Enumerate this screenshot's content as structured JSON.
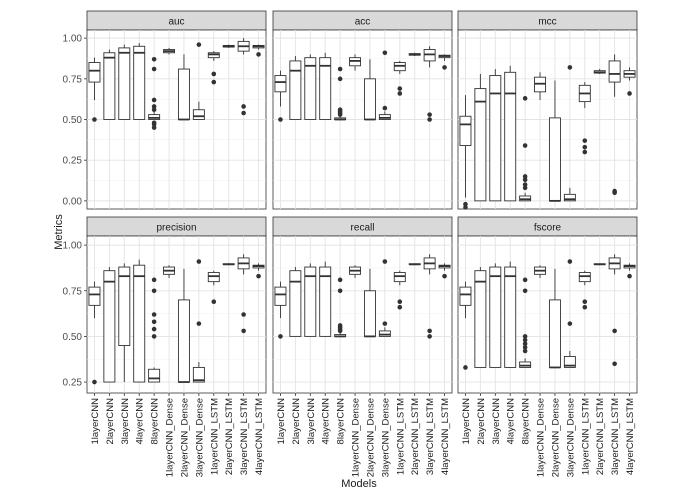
{
  "chart_data": {
    "type": "boxplot",
    "xlabel": "Models",
    "ylabel": "Metrics",
    "models": [
      "1layerCNN",
      "2layerCNN",
      "3layerCNN",
      "4layerCNN",
      "8layerCNN",
      "1layerCNN_Dense",
      "2layerCNN_Dense",
      "3layerCNN_Dense",
      "1layerCNN_LSTM",
      "2layerCNN_LSTM",
      "3layerCNN_LSTM",
      "4layerCNN_LSTM"
    ],
    "panels": [
      {
        "title": "auc",
        "ylim": [
          -0.05,
          1.05
        ],
        "yticks": [
          0.0,
          0.25,
          0.5,
          0.75,
          1.0
        ],
        "ytick_labels": [
          "0.00",
          "0.25",
          "0.50",
          "0.75",
          "1.00"
        ],
        "boxes": [
          {
            "min": 0.62,
            "q1": 0.73,
            "median": 0.8,
            "q3": 0.85,
            "max": 0.88,
            "outliers": [
              0.5
            ]
          },
          {
            "min": 0.5,
            "q1": 0.5,
            "median": 0.88,
            "q3": 0.91,
            "max": 0.93,
            "outliers": []
          },
          {
            "min": 0.5,
            "q1": 0.5,
            "median": 0.91,
            "q3": 0.94,
            "max": 0.96,
            "outliers": []
          },
          {
            "min": 0.5,
            "q1": 0.5,
            "median": 0.91,
            "q3": 0.95,
            "max": 0.97,
            "outliers": []
          },
          {
            "min": 0.5,
            "q1": 0.5,
            "median": 0.51,
            "q3": 0.53,
            "max": 0.55,
            "outliers": [
              0.48,
              0.47,
              0.45,
              0.58,
              0.56,
              0.62,
              0.81,
              0.87
            ]
          },
          {
            "min": 0.9,
            "q1": 0.91,
            "median": 0.92,
            "q3": 0.93,
            "max": 0.94,
            "outliers": []
          },
          {
            "min": 0.5,
            "q1": 0.5,
            "median": 0.5,
            "q3": 0.81,
            "max": 0.9,
            "outliers": []
          },
          {
            "min": 0.5,
            "q1": 0.5,
            "median": 0.52,
            "q3": 0.56,
            "max": 0.61,
            "outliers": [
              0.96
            ]
          },
          {
            "min": 0.86,
            "q1": 0.88,
            "median": 0.9,
            "q3": 0.91,
            "max": 0.92,
            "outliers": [
              0.78,
              0.73
            ]
          },
          {
            "min": 0.94,
            "q1": 0.945,
            "median": 0.95,
            "q3": 0.955,
            "max": 0.96,
            "outliers": []
          },
          {
            "min": 0.9,
            "q1": 0.92,
            "median": 0.95,
            "q3": 0.98,
            "max": 1.0,
            "outliers": [
              0.58,
              0.54
            ]
          },
          {
            "min": 0.93,
            "q1": 0.94,
            "median": 0.95,
            "q3": 0.955,
            "max": 0.96,
            "outliers": [
              0.9
            ]
          }
        ]
      },
      {
        "title": "acc",
        "ylim": [
          -0.05,
          1.05
        ],
        "yticks": [
          0.0,
          0.25,
          0.5,
          0.75,
          1.0
        ],
        "ytick_labels": [
          "0.00",
          "0.25",
          "0.50",
          "0.75",
          "1.00"
        ],
        "boxes": [
          {
            "min": 0.58,
            "q1": 0.67,
            "median": 0.73,
            "q3": 0.77,
            "max": 0.8,
            "outliers": [
              0.5
            ]
          },
          {
            "min": 0.5,
            "q1": 0.5,
            "median": 0.8,
            "q3": 0.86,
            "max": 0.89,
            "outliers": []
          },
          {
            "min": 0.5,
            "q1": 0.5,
            "median": 0.83,
            "q3": 0.88,
            "max": 0.9,
            "outliers": []
          },
          {
            "min": 0.5,
            "q1": 0.5,
            "median": 0.83,
            "q3": 0.88,
            "max": 0.91,
            "outliers": []
          },
          {
            "min": 0.5,
            "q1": 0.5,
            "median": 0.5,
            "q3": 0.51,
            "max": 0.52,
            "outliers": [
              0.55,
              0.54,
              0.53,
              0.56,
              0.75,
              0.81
            ]
          },
          {
            "min": 0.8,
            "q1": 0.83,
            "median": 0.86,
            "q3": 0.88,
            "max": 0.9,
            "outliers": []
          },
          {
            "min": 0.5,
            "q1": 0.5,
            "median": 0.5,
            "q3": 0.75,
            "max": 0.87,
            "outliers": []
          },
          {
            "min": 0.5,
            "q1": 0.5,
            "median": 0.51,
            "q3": 0.53,
            "max": 0.55,
            "outliers": [
              0.91,
              0.57
            ]
          },
          {
            "min": 0.78,
            "q1": 0.8,
            "median": 0.83,
            "q3": 0.85,
            "max": 0.86,
            "outliers": [
              0.69,
              0.66
            ]
          },
          {
            "min": 0.89,
            "q1": 0.895,
            "median": 0.9,
            "q3": 0.905,
            "max": 0.91,
            "outliers": []
          },
          {
            "min": 0.82,
            "q1": 0.86,
            "median": 0.9,
            "q3": 0.93,
            "max": 0.95,
            "outliers": [
              0.53,
              0.5
            ]
          },
          {
            "min": 0.86,
            "q1": 0.88,
            "median": 0.89,
            "q3": 0.895,
            "max": 0.9,
            "outliers": [
              0.82
            ]
          }
        ]
      },
      {
        "title": "mcc",
        "ylim": [
          -0.05,
          1.05
        ],
        "yticks": [
          0.0,
          0.25,
          0.5,
          0.75,
          1.0
        ],
        "ytick_labels": [
          "0.00",
          "0.25",
          "0.50",
          "0.75",
          "1.00"
        ],
        "boxes": [
          {
            "min": 0.02,
            "q1": 0.34,
            "median": 0.47,
            "q3": 0.52,
            "max": 0.65,
            "outliers": [
              -0.02,
              -0.04
            ]
          },
          {
            "min": 0.0,
            "q1": 0.0,
            "median": 0.61,
            "q3": 0.69,
            "max": 0.78,
            "outliers": []
          },
          {
            "min": 0.0,
            "q1": 0.0,
            "median": 0.66,
            "q3": 0.77,
            "max": 0.81,
            "outliers": []
          },
          {
            "min": 0.0,
            "q1": 0.0,
            "median": 0.66,
            "q3": 0.79,
            "max": 0.83,
            "outliers": []
          },
          {
            "min": 0.0,
            "q1": 0.0,
            "median": 0.01,
            "q3": 0.03,
            "max": 0.05,
            "outliers": [
              0.08,
              0.1,
              0.13,
              0.15,
              0.34,
              0.63
            ]
          },
          {
            "min": 0.62,
            "q1": 0.67,
            "median": 0.72,
            "q3": 0.76,
            "max": 0.79,
            "outliers": []
          },
          {
            "min": 0.0,
            "q1": 0.0,
            "median": 0.0,
            "q3": 0.51,
            "max": 0.74,
            "outliers": []
          },
          {
            "min": 0.0,
            "q1": 0.0,
            "median": 0.01,
            "q3": 0.04,
            "max": 0.08,
            "outliers": [
              0.82
            ]
          },
          {
            "min": 0.57,
            "q1": 0.61,
            "median": 0.66,
            "q3": 0.71,
            "max": 0.73,
            "outliers": [
              0.37,
              0.33,
              0.3
            ]
          },
          {
            "min": 0.78,
            "q1": 0.785,
            "median": 0.79,
            "q3": 0.8,
            "max": 0.81,
            "outliers": []
          },
          {
            "min": 0.64,
            "q1": 0.73,
            "median": 0.78,
            "q3": 0.86,
            "max": 0.9,
            "outliers": [
              0.06,
              0.05
            ]
          },
          {
            "min": 0.74,
            "q1": 0.76,
            "median": 0.78,
            "q3": 0.8,
            "max": 0.82,
            "outliers": [
              0.66
            ]
          }
        ]
      },
      {
        "title": "precision",
        "ylim": [
          0.19,
          1.05
        ],
        "yticks": [
          0.25,
          0.5,
          0.75,
          1.0
        ],
        "ytick_labels": [
          "0.25",
          "0.50",
          "0.75",
          "1.00"
        ],
        "boxes": [
          {
            "min": 0.6,
            "q1": 0.67,
            "median": 0.73,
            "q3": 0.77,
            "max": 0.8,
            "outliers": [
              0.25
            ]
          },
          {
            "min": 0.25,
            "q1": 0.25,
            "median": 0.8,
            "q3": 0.86,
            "max": 0.88,
            "outliers": []
          },
          {
            "min": 0.25,
            "q1": 0.45,
            "median": 0.83,
            "q3": 0.88,
            "max": 0.9,
            "outliers": []
          },
          {
            "min": 0.25,
            "q1": 0.25,
            "median": 0.83,
            "q3": 0.89,
            "max": 0.92,
            "outliers": []
          },
          {
            "min": 0.25,
            "q1": 0.25,
            "median": 0.27,
            "q3": 0.32,
            "max": 0.33,
            "outliers": [
              0.5,
              0.54,
              0.58,
              0.62,
              0.75,
              0.81
            ]
          },
          {
            "min": 0.82,
            "q1": 0.84,
            "median": 0.86,
            "q3": 0.88,
            "max": 0.89,
            "outliers": []
          },
          {
            "min": 0.25,
            "q1": 0.25,
            "median": 0.25,
            "q3": 0.7,
            "max": 0.87,
            "outliers": []
          },
          {
            "min": 0.25,
            "q1": 0.25,
            "median": 0.26,
            "q3": 0.33,
            "max": 0.36,
            "outliers": [
              0.91,
              0.57
            ]
          },
          {
            "min": 0.78,
            "q1": 0.8,
            "median": 0.83,
            "q3": 0.85,
            "max": 0.86,
            "outliers": [
              0.69
            ]
          },
          {
            "min": 0.89,
            "q1": 0.893,
            "median": 0.895,
            "q3": 0.898,
            "max": 0.9,
            "outliers": []
          },
          {
            "min": 0.84,
            "q1": 0.87,
            "median": 0.9,
            "q3": 0.93,
            "max": 0.95,
            "outliers": [
              0.62,
              0.53
            ]
          },
          {
            "min": 0.86,
            "q1": 0.875,
            "median": 0.885,
            "q3": 0.89,
            "max": 0.9,
            "outliers": [
              0.83
            ]
          }
        ]
      },
      {
        "title": "recall",
        "ylim": [
          0.19,
          1.05
        ],
        "yticks": [
          0.25,
          0.5,
          0.75,
          1.0
        ],
        "ytick_labels": [
          "0.25",
          "0.50",
          "0.75",
          "1.00"
        ],
        "boxes": [
          {
            "min": 0.6,
            "q1": 0.67,
            "median": 0.73,
            "q3": 0.77,
            "max": 0.8,
            "outliers": [
              0.5
            ]
          },
          {
            "min": 0.5,
            "q1": 0.5,
            "median": 0.8,
            "q3": 0.86,
            "max": 0.88,
            "outliers": []
          },
          {
            "min": 0.5,
            "q1": 0.5,
            "median": 0.83,
            "q3": 0.88,
            "max": 0.9,
            "outliers": []
          },
          {
            "min": 0.5,
            "q1": 0.5,
            "median": 0.83,
            "q3": 0.88,
            "max": 0.91,
            "outliers": []
          },
          {
            "min": 0.5,
            "q1": 0.5,
            "median": 0.5,
            "q3": 0.51,
            "max": 0.52,
            "outliers": [
              0.53,
              0.54,
              0.55,
              0.56,
              0.75,
              0.81
            ]
          },
          {
            "min": 0.82,
            "q1": 0.84,
            "median": 0.86,
            "q3": 0.88,
            "max": 0.89,
            "outliers": []
          },
          {
            "min": 0.5,
            "q1": 0.5,
            "median": 0.5,
            "q3": 0.75,
            "max": 0.87,
            "outliers": []
          },
          {
            "min": 0.5,
            "q1": 0.5,
            "median": 0.51,
            "q3": 0.53,
            "max": 0.55,
            "outliers": [
              0.91,
              0.57
            ]
          },
          {
            "min": 0.78,
            "q1": 0.8,
            "median": 0.83,
            "q3": 0.85,
            "max": 0.86,
            "outliers": [
              0.69,
              0.66
            ]
          },
          {
            "min": 0.89,
            "q1": 0.893,
            "median": 0.895,
            "q3": 0.898,
            "max": 0.9,
            "outliers": []
          },
          {
            "min": 0.84,
            "q1": 0.87,
            "median": 0.9,
            "q3": 0.93,
            "max": 0.95,
            "outliers": [
              0.53,
              0.5
            ]
          },
          {
            "min": 0.86,
            "q1": 0.875,
            "median": 0.885,
            "q3": 0.89,
            "max": 0.9,
            "outliers": [
              0.83
            ]
          }
        ]
      },
      {
        "title": "fscore",
        "ylim": [
          0.19,
          1.05
        ],
        "yticks": [
          0.25,
          0.5,
          0.75,
          1.0
        ],
        "ytick_labels": [
          "0.25",
          "0.50",
          "0.75",
          "1.00"
        ],
        "boxes": [
          {
            "min": 0.6,
            "q1": 0.67,
            "median": 0.73,
            "q3": 0.77,
            "max": 0.8,
            "outliers": [
              0.33
            ]
          },
          {
            "min": 0.33,
            "q1": 0.33,
            "median": 0.8,
            "q3": 0.86,
            "max": 0.88,
            "outliers": []
          },
          {
            "min": 0.33,
            "q1": 0.33,
            "median": 0.83,
            "q3": 0.88,
            "max": 0.9,
            "outliers": []
          },
          {
            "min": 0.33,
            "q1": 0.33,
            "median": 0.83,
            "q3": 0.88,
            "max": 0.91,
            "outliers": []
          },
          {
            "min": 0.33,
            "q1": 0.33,
            "median": 0.34,
            "q3": 0.36,
            "max": 0.38,
            "outliers": [
              0.42,
              0.44,
              0.46,
              0.48,
              0.5,
              0.75,
              0.81
            ]
          },
          {
            "min": 0.82,
            "q1": 0.84,
            "median": 0.86,
            "q3": 0.88,
            "max": 0.89,
            "outliers": []
          },
          {
            "min": 0.33,
            "q1": 0.33,
            "median": 0.33,
            "q3": 0.7,
            "max": 0.87,
            "outliers": []
          },
          {
            "min": 0.33,
            "q1": 0.33,
            "median": 0.34,
            "q3": 0.39,
            "max": 0.42,
            "outliers": [
              0.91,
              0.57
            ]
          },
          {
            "min": 0.78,
            "q1": 0.8,
            "median": 0.83,
            "q3": 0.85,
            "max": 0.86,
            "outliers": [
              0.69,
              0.66
            ]
          },
          {
            "min": 0.89,
            "q1": 0.893,
            "median": 0.895,
            "q3": 0.898,
            "max": 0.9,
            "outliers": []
          },
          {
            "min": 0.84,
            "q1": 0.87,
            "median": 0.9,
            "q3": 0.93,
            "max": 0.95,
            "outliers": [
              0.53,
              0.35
            ]
          },
          {
            "min": 0.86,
            "q1": 0.875,
            "median": 0.885,
            "q3": 0.89,
            "max": 0.9,
            "outliers": [
              0.83
            ]
          }
        ]
      }
    ]
  }
}
